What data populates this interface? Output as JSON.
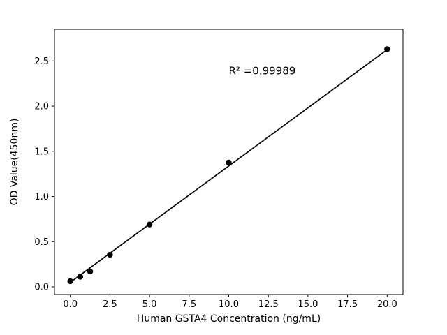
{
  "chart_data": {
    "type": "scatter",
    "title": "",
    "xlabel": "Human GSTA4 Concentration (ng/mL)",
    "ylabel": "OD Value(450nm)",
    "x": [
      0,
      0.625,
      1.25,
      2.5,
      5,
      10,
      20
    ],
    "y": [
      0.062,
      0.112,
      0.17,
      0.355,
      0.69,
      1.375,
      2.63
    ],
    "fit_line": {
      "x": [
        0,
        20
      ],
      "y": [
        0.05,
        2.625
      ]
    },
    "annotation": {
      "text": "R² =0.99989",
      "x": 10,
      "y": 2.35
    },
    "xlim": [
      -1,
      21
    ],
    "ylim": [
      -0.085,
      2.85
    ],
    "xticks": [
      0.0,
      2.5,
      5.0,
      7.5,
      10.0,
      12.5,
      15.0,
      17.5,
      20.0
    ],
    "xtick_labels": [
      "0.0",
      "2.5",
      "5.0",
      "7.5",
      "10.0",
      "12.5",
      "15.0",
      "17.5",
      "20.0"
    ],
    "yticks": [
      0.0,
      0.5,
      1.0,
      1.5,
      2.0,
      2.5
    ],
    "ytick_labels": [
      "0.0",
      "0.5",
      "1.0",
      "1.5",
      "2.0",
      "2.5"
    ],
    "grid": false,
    "legend": null,
    "colors": {
      "line": "#000000",
      "marker": "#000000",
      "frame": "#000000",
      "text": "#000000",
      "background": "#ffffff"
    }
  }
}
